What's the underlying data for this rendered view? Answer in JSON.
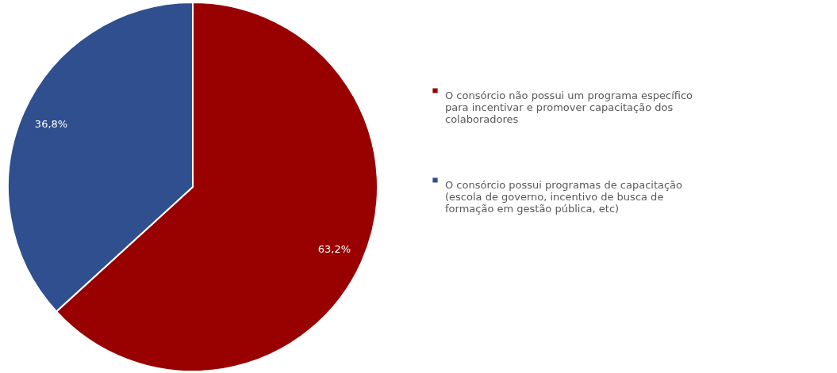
{
  "chart_data": {
    "type": "pie",
    "categories": [
      "O consórcio não possui um programa específico para incentivar e promover capacitação dos colaboradores",
      "O consórcio possui programas de capacitação (escola de governo, incentivo de busca de formação em gestão pública, etc)"
    ],
    "values": [
      63.2,
      36.8
    ],
    "value_labels": [
      "63,2%",
      "36,8%"
    ],
    "colors": [
      "#990000",
      "#2f4f8f"
    ],
    "legend": "right"
  }
}
